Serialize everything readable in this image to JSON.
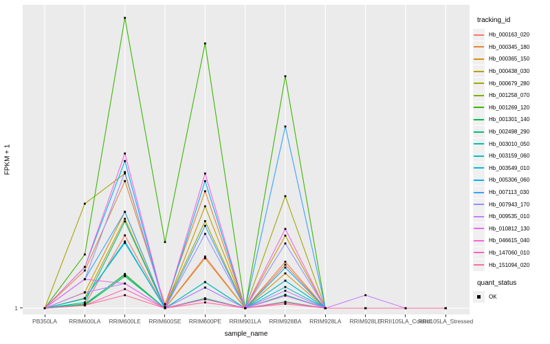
{
  "axes": {
    "x_title": "sample_name",
    "y_title": "FPKM + 1"
  },
  "legend": {
    "tracking_title": "tracking_id",
    "quant_title": "quant_status",
    "quant_items": [
      {
        "label": "OK"
      }
    ]
  },
  "colors": {
    "panel_background": "#EBEBEB",
    "gridline": "#FFFFFF",
    "tick_mark": "#333333",
    "tick_text": "#4D4D4D",
    "point": "#000000"
  },
  "chart_data": {
    "type": "line",
    "title": "",
    "xlabel": "sample_name",
    "ylabel": "FPKM + 1",
    "ytick_labels": [
      "1"
    ],
    "grid": "vertical major per category, horizontal major at y=1",
    "legend_position": "right",
    "value_scale": "fraction of panel height above the y=1 baseline (log-style axis, only tick '1' labeled)",
    "x_categories": [
      "PB350LA",
      "RRIM600LA",
      "RRIM600LE",
      "RRIM600SE",
      "RRIM600PE",
      "RRIM901LA",
      "RRIM928BA",
      "RRIM928LA",
      "RRIM928LE",
      "RRII105LA_Control",
      "RRII105LA_Stressed"
    ],
    "point_marker": {
      "shape": "square",
      "color": "#000000",
      "meaning": "quant_status OK"
    },
    "series": [
      {
        "name": "Hb_000163_020",
        "color": "#F8766D",
        "values": [
          0,
          0.012,
          0.251,
          0,
          0.178,
          0,
          0.15,
          0,
          0,
          0,
          0
        ]
      },
      {
        "name": "Hb_000345_180",
        "color": "#EA8331",
        "values": [
          0,
          0.13,
          0.438,
          0.014,
          0.403,
          0,
          0.16,
          0,
          0,
          0,
          0
        ]
      },
      {
        "name": "Hb_000365_150",
        "color": "#D89000",
        "values": [
          0,
          0.055,
          0.332,
          0,
          0.172,
          0,
          0.12,
          0,
          0,
          0,
          0
        ]
      },
      {
        "name": "Hb_000438_030",
        "color": "#C09B00",
        "values": [
          0,
          0.035,
          0.308,
          0,
          0.351,
          0,
          0.25,
          0,
          0,
          0,
          0
        ]
      },
      {
        "name": "Hb_000679_280",
        "color": "#A3A500",
        "values": [
          0,
          0.36,
          0.464,
          0.005,
          0.3,
          0,
          0.386,
          0,
          0,
          0,
          0
        ]
      },
      {
        "name": "Hb_001258_070",
        "color": "#7CAE00",
        "values": [
          0,
          0.012,
          0.118,
          0,
          0.034,
          0,
          0.046,
          0,
          0,
          0,
          0
        ]
      },
      {
        "name": "Hb_001269_120",
        "color": "#39B600",
        "values": [
          0,
          0.185,
          1.0,
          0.228,
          0.912,
          0,
          0.799,
          0,
          0,
          0,
          0
        ]
      },
      {
        "name": "Hb_001301_140",
        "color": "#00BB4E",
        "values": [
          0,
          0.01,
          0.11,
          0,
          0.031,
          0,
          0.022,
          0,
          0,
          0,
          0
        ]
      },
      {
        "name": "Hb_002498_290",
        "color": "#00BF7D",
        "values": [
          0,
          0.02,
          0.299,
          0,
          0.09,
          0,
          0.095,
          0,
          0,
          0,
          0
        ]
      },
      {
        "name": "Hb_003010_050",
        "color": "#00C1A3",
        "values": [
          0,
          0.015,
          0.115,
          0,
          0.034,
          0,
          0.046,
          0,
          0,
          0,
          0
        ]
      },
      {
        "name": "Hb_003159_060",
        "color": "#00BFC4",
        "values": [
          0,
          0.033,
          0.23,
          0,
          0.09,
          0,
          0.073,
          0,
          0,
          0,
          0
        ]
      },
      {
        "name": "Hb_003549_010",
        "color": "#00BAE0",
        "values": [
          0,
          0.033,
          0.225,
          0,
          0.071,
          0,
          0.095,
          0,
          0,
          0,
          0
        ]
      },
      {
        "name": "Hb_005306_060",
        "color": "#00B0F6",
        "values": [
          0,
          0.142,
          0.507,
          0,
          0.438,
          0,
          0.14,
          0,
          0,
          0,
          0
        ]
      },
      {
        "name": "Hb_007113_030",
        "color": "#35A2FF",
        "values": [
          0,
          0.1,
          0.332,
          0,
          0.284,
          0,
          0.626,
          0,
          0,
          0,
          0
        ]
      },
      {
        "name": "Hb_007943_170",
        "color": "#9590FF",
        "values": [
          0,
          0.1,
          0.469,
          0,
          0.256,
          0,
          0.223,
          0,
          0,
          0,
          0
        ]
      },
      {
        "name": "Hb_009535_010",
        "color": "#C77CFF",
        "values": [
          0,
          0.054,
          0.085,
          0,
          0.071,
          0,
          0.06,
          0,
          0.045,
          0,
          0
        ]
      },
      {
        "name": "Hb_010812_130",
        "color": "#E76BF3",
        "values": [
          0,
          0.1,
          0.085,
          0,
          0.031,
          0,
          0.043,
          0,
          0,
          0,
          0
        ]
      },
      {
        "name": "Hb_046615_040",
        "color": "#FA62DB",
        "values": [
          0,
          0.142,
          0.533,
          0,
          0.464,
          0,
          0.273,
          0,
          0,
          0,
          0
        ]
      },
      {
        "name": "Hb_147060_010",
        "color": "#FF62BC",
        "values": [
          0,
          0.01,
          0.066,
          0,
          0.031,
          0,
          0.02,
          0,
          0,
          0,
          0
        ]
      },
      {
        "name": "Hb_151094_020",
        "color": "#FF6A98",
        "values": [
          0,
          0.01,
          0.045,
          0,
          0.02,
          0,
          0.015,
          0,
          0,
          0,
          0
        ]
      }
    ]
  }
}
